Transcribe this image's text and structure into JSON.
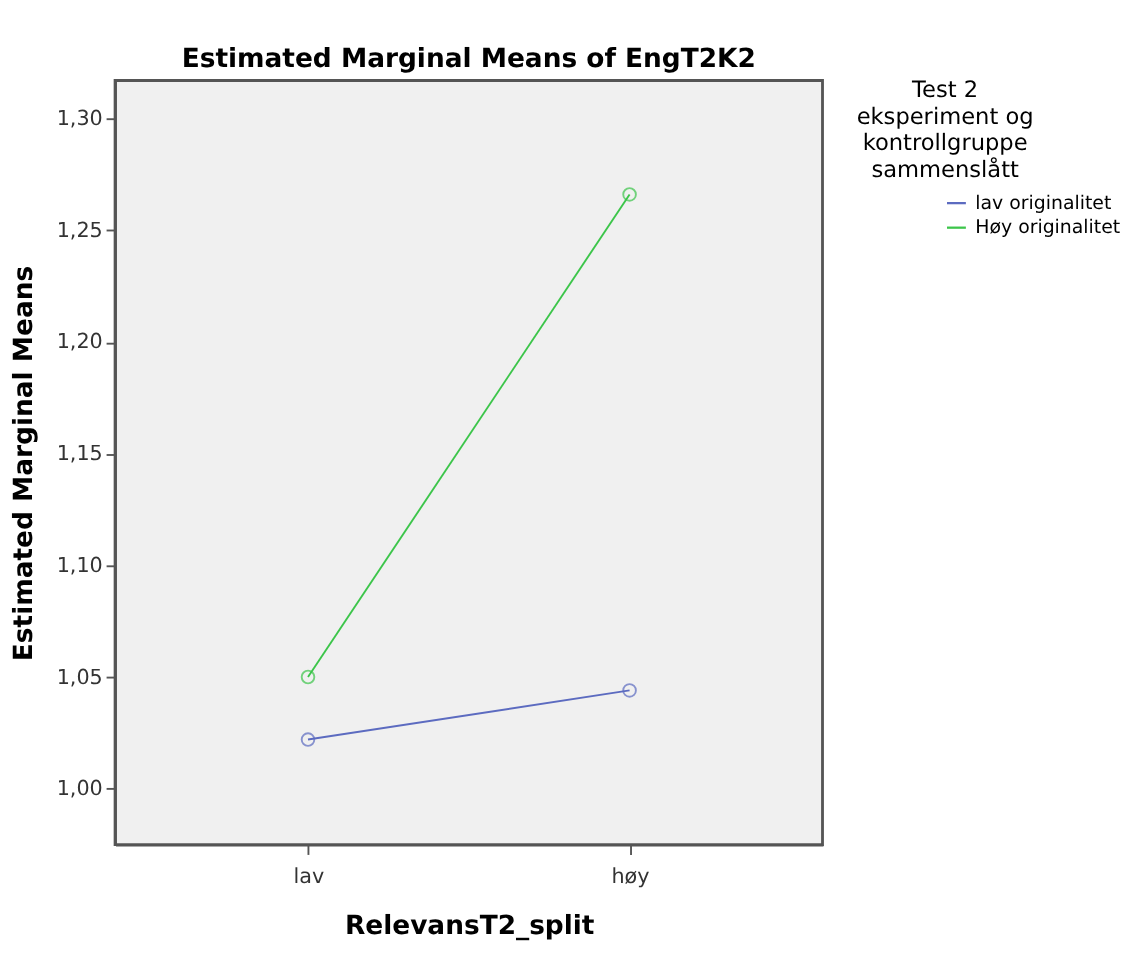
{
  "chart_data": {
    "type": "line",
    "title": "Estimated Marginal Means of EngT2K2",
    "xlabel": "RelevansT2_split",
    "ylabel": "Estimated Marginal Means",
    "legend_title": "Test 2 eksperiment og kontrollgruppe sammenslått",
    "categories": [
      "lav",
      "høy"
    ],
    "series": [
      {
        "name": "lav originalitet",
        "color": "#5c6bc0",
        "values": [
          1.022,
          1.044
        ]
      },
      {
        "name": "Høy originalitet",
        "color": "#3cc54a",
        "values": [
          1.05,
          1.266
        ]
      }
    ],
    "ylim": [
      0.975,
      1.317
    ],
    "yticks": [
      {
        "value": 1.0,
        "label": "1,00"
      },
      {
        "value": 1.05,
        "label": "1,05"
      },
      {
        "value": 1.1,
        "label": "1,10"
      },
      {
        "value": 1.15,
        "label": "1,15"
      },
      {
        "value": 1.2,
        "label": "1,20"
      },
      {
        "value": 1.25,
        "label": "1,25"
      },
      {
        "value": 1.3,
        "label": "1,30"
      }
    ],
    "marker": "circle",
    "line_style": "solid",
    "grid": false,
    "legend": "top right"
  }
}
